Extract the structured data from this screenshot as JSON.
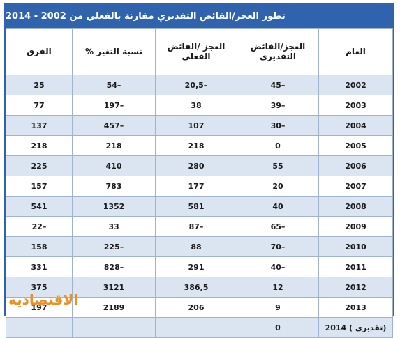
{
  "header": {
    "title": "تطور العجز/الفائض التقديري مقارنة بالفعلي من 2002 - 2014"
  },
  "table": {
    "columns": [
      "العام",
      "العجز/الفائض التقديري",
      "العجز /الفائض الفعلي",
      "نسبة التغير %",
      "الفرق"
    ],
    "rows": [
      [
        "2002",
        "45–",
        "20,5–",
        "54–",
        "25"
      ],
      [
        "2003",
        "39–",
        "38",
        "197–",
        "77"
      ],
      [
        "2004",
        "30–",
        "107",
        "457–",
        "137"
      ],
      [
        "2005",
        "0",
        "218",
        "218",
        "218"
      ],
      [
        "2006",
        "55",
        "280",
        "410",
        "225"
      ],
      [
        "2007",
        "20",
        "177",
        "783",
        "157"
      ],
      [
        "2008",
        "40",
        "581",
        "1352",
        "541"
      ],
      [
        "2009",
        "65–",
        "87–",
        "33",
        "22–"
      ],
      [
        "2010",
        "70–",
        "88",
        "225–",
        "158"
      ],
      [
        "2011",
        "40–",
        "291",
        "828–",
        "331"
      ],
      [
        "2012",
        "12",
        "386,5",
        "3121",
        "375"
      ],
      [
        "2013",
        "9",
        "206",
        "2189",
        "197"
      ],
      [
        "2014 ( تقديري)",
        "0"
      ]
    ]
  },
  "logo": {
    "text": "الاقتصادية"
  }
}
